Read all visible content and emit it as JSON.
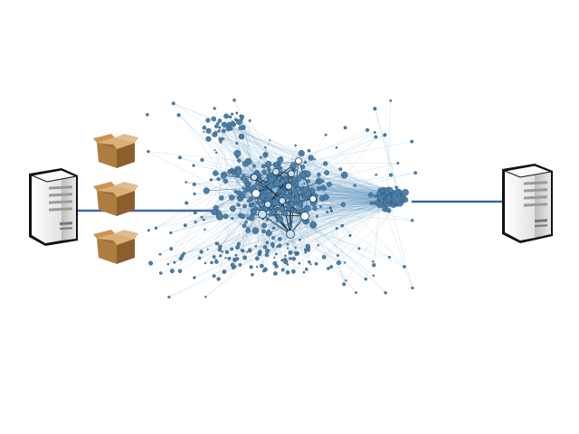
{
  "diagram": {
    "background": "#ffffff",
    "colors": {
      "link": "#3b63b8",
      "node_fill": "#4d7fa8",
      "node_stroke": "#24506f",
      "edge": "#6ea4c8",
      "edge_dark": "#1f3f5a",
      "hub_fill": "#ffffff",
      "box_brown": "#a4733b",
      "box_light": "#caa06a",
      "server_body": "#f1f1f1",
      "server_side": "#c9c9c9",
      "server_outline": "#111111"
    },
    "left_server": {
      "icon": "server-tower-icon"
    },
    "right_server": {
      "icon": "server-tower-icon"
    },
    "packets": [
      {
        "icon": "cardboard-box-icon"
      },
      {
        "icon": "cardboard-box-icon"
      },
      {
        "icon": "cardboard-box-icon"
      }
    ],
    "network": {
      "icon": "network-graph-icon"
    }
  }
}
